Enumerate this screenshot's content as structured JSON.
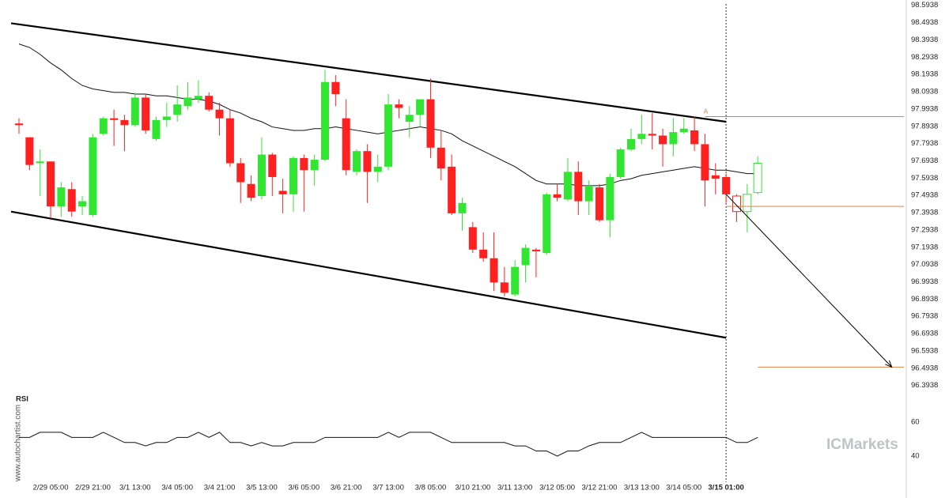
{
  "chart_data": {
    "type": "candlestick",
    "categories": [
      null,
      null,
      null,
      "2/29 05:00",
      null,
      null,
      null,
      "2/29 21:00",
      null,
      null,
      null,
      "3/1 13:00",
      null,
      null,
      null,
      "3/4 05:00",
      null,
      null,
      null,
      "3/4 21:00",
      null,
      null,
      null,
      "3/5 13:00",
      null,
      null,
      null,
      "3/6 05:00",
      null,
      null,
      null,
      "3/6 21:00",
      null,
      null,
      null,
      "3/7 13:00",
      null,
      null,
      null,
      "3/8 05:00",
      null,
      null,
      null,
      "3/10 21:00",
      null,
      null,
      null,
      "3/11 13:00",
      null,
      null,
      null,
      "3/12 05:00",
      null,
      null,
      null,
      "3/12 21:00",
      null,
      null,
      null,
      "3/13 13:00",
      null,
      null,
      null,
      "3/14 05:00",
      null,
      null,
      null,
      "3/15 01:00",
      null,
      null,
      null
    ],
    "highlight_category": 67,
    "open": [
      97.91,
      97.83,
      97.68,
      97.69,
      97.43,
      97.53,
      97.43,
      97.38,
      97.85,
      97.94,
      97.93,
      97.9,
      98.06,
      97.82,
      97.93,
      97.96,
      98.01,
      98.05,
      98.07,
      97.99,
      97.94,
      97.68,
      97.56,
      97.49,
      97.73,
      97.52,
      97.5,
      97.71,
      97.64,
      97.7,
      98.15,
      97.94,
      97.63,
      97.75,
      97.63,
      97.66,
      98.02,
      97.92,
      97.96,
      98.05,
      97.77,
      97.66,
      97.39,
      97.31,
      97.18,
      97.13,
      96.99,
      96.92,
      97.09,
      97.18,
      97.16,
      97.5,
      97.47,
      97.63,
      97.46,
      97.54,
      97.35,
      97.6,
      97.76,
      97.82,
      97.85,
      97.84,
      97.79,
      97.86,
      97.87,
      97.79,
      97.61,
      97.6,
      97.49,
      97.4,
      97.51
    ],
    "high": [
      97.94,
      97.83,
      97.76,
      97.69,
      97.57,
      97.57,
      97.49,
      97.85,
      97.95,
      97.99,
      97.96,
      98.09,
      98.08,
      97.95,
      98.03,
      98.13,
      98.15,
      98.16,
      98.09,
      98.03,
      97.99,
      97.71,
      97.61,
      97.83,
      97.74,
      97.59,
      97.72,
      97.73,
      97.73,
      98.22,
      98.19,
      98.05,
      97.76,
      97.79,
      97.73,
      98.08,
      98.05,
      98.01,
      98.05,
      98.17,
      97.87,
      97.73,
      97.48,
      97.34,
      97.28,
      97.28,
      97.08,
      97.12,
      97.21,
      97.19,
      97.51,
      97.56,
      97.71,
      97.69,
      97.58,
      97.56,
      97.62,
      97.77,
      97.88,
      97.96,
      97.97,
      97.88,
      97.94,
      97.94,
      97.95,
      97.85,
      97.68,
      97.62,
      97.5,
      97.56,
      97.72
    ],
    "low": [
      97.85,
      97.64,
      97.49,
      97.36,
      97.37,
      97.37,
      97.38,
      97.37,
      97.84,
      97.78,
      97.75,
      97.89,
      97.85,
      97.81,
      97.89,
      97.92,
      97.99,
      98.03,
      97.98,
      97.84,
      97.66,
      97.45,
      97.46,
      97.47,
      97.49,
      97.39,
      97.4,
      97.4,
      97.55,
      97.69,
      98.01,
      97.61,
      97.61,
      97.45,
      97.57,
      97.64,
      97.94,
      97.83,
      97.89,
      97.71,
      97.58,
      97.38,
      97.29,
      97.16,
      97.11,
      96.94,
      96.91,
      96.91,
      96.99,
      97.02,
      97.15,
      97.46,
      97.46,
      97.38,
      97.38,
      97.34,
      97.25,
      97.59,
      97.75,
      97.79,
      97.76,
      97.66,
      97.72,
      97.85,
      97.75,
      97.43,
      97.5,
      97.45,
      97.34,
      97.28,
      97.5
    ],
    "close": [
      97.9,
      97.67,
      97.69,
      97.43,
      97.54,
      97.4,
      97.46,
      97.83,
      97.94,
      97.93,
      97.9,
      98.06,
      97.87,
      97.93,
      97.95,
      98.02,
      98.06,
      98.07,
      97.99,
      97.94,
      97.68,
      97.57,
      97.48,
      97.73,
      97.6,
      97.5,
      97.71,
      97.64,
      97.7,
      98.15,
      98.08,
      97.64,
      97.75,
      97.63,
      97.66,
      98.02,
      98.0,
      97.96,
      98.05,
      97.77,
      97.65,
      97.39,
      97.45,
      97.18,
      97.13,
      96.99,
      96.93,
      97.08,
      97.19,
      97.17,
      97.5,
      97.48,
      97.63,
      97.46,
      97.55,
      97.35,
      97.6,
      97.76,
      97.82,
      97.85,
      97.84,
      97.79,
      97.86,
      97.88,
      97.79,
      97.58,
      97.59,
      97.5,
      97.4,
      97.5,
      97.68
    ],
    "up_color": "#33e533",
    "down_color": "#ff2020",
    "moving_average": {
      "color": "#111111",
      "values": [
        98.37,
        98.35,
        98.31,
        98.26,
        98.22,
        98.17,
        98.13,
        98.11,
        98.1,
        98.09,
        98.09,
        98.08,
        98.08,
        98.07,
        98.07,
        98.06,
        98.05,
        98.05,
        98.04,
        98.02,
        97.99,
        97.97,
        97.94,
        97.92,
        97.89,
        97.88,
        97.87,
        97.87,
        97.88,
        97.88,
        97.89,
        97.88,
        97.87,
        97.86,
        97.85,
        97.86,
        97.87,
        97.88,
        97.89,
        97.88,
        97.87,
        97.85,
        97.81,
        97.78,
        97.75,
        97.72,
        97.69,
        97.66,
        97.62,
        97.58,
        97.56,
        97.56,
        97.56,
        97.55,
        97.55,
        97.55,
        97.56,
        97.58,
        97.59,
        97.61,
        97.62,
        97.63,
        97.64,
        97.65,
        97.66,
        97.65,
        97.64,
        97.64,
        97.63,
        97.62,
        97.62
      ]
    },
    "ylim": [
      96.36,
      98.62
    ],
    "yticks": [
      98.5938,
      98.4938,
      98.3938,
      98.2938,
      98.1938,
      98.0938,
      97.9938,
      97.8938,
      97.7938,
      97.6938,
      97.5938,
      97.4938,
      97.3938,
      97.2938,
      97.1938,
      97.0938,
      96.9938,
      96.8938,
      96.7938,
      96.6938,
      96.5938,
      96.4938,
      96.3938
    ],
    "channel": [
      {
        "x": [
          0,
          67
        ],
        "values": [
          98.49,
          97.92
        ]
      },
      {
        "x": [
          0,
          67
        ],
        "values": [
          97.4,
          96.67
        ]
      }
    ],
    "forecast_arrow": {
      "x": [
        67,
        83
      ],
      "values": [
        97.5,
        96.5
      ]
    },
    "levels": [
      {
        "value": 97.95,
        "from": 65
      },
      {
        "value": 97.43,
        "from": 67
      },
      {
        "value": 96.5,
        "from": 70
      }
    ],
    "level_color": "#e08040",
    "marker": {
      "text": "A",
      "x": 65
    },
    "rsi": {
      "label": "RSI",
      "ylim": [
        30,
        70
      ],
      "yticks": [
        40,
        60
      ],
      "values": [
        51,
        51,
        54,
        54,
        54,
        51,
        51,
        51,
        54,
        51,
        48,
        48,
        46,
        48,
        48,
        51,
        51,
        54,
        51,
        54,
        48,
        48,
        46,
        48,
        46,
        46,
        48,
        48,
        48,
        51,
        51,
        51,
        51,
        51,
        51,
        54,
        51,
        54,
        54,
        54,
        51,
        48,
        48,
        48,
        48,
        48,
        48,
        46,
        46,
        43,
        43,
        40,
        43,
        43,
        46,
        48,
        48,
        48,
        51,
        54,
        51,
        51,
        51,
        51,
        51,
        51,
        51,
        51,
        48,
        48,
        51
      ]
    },
    "watermark": "www.autochartist.com",
    "logo": "ICMarkets"
  }
}
